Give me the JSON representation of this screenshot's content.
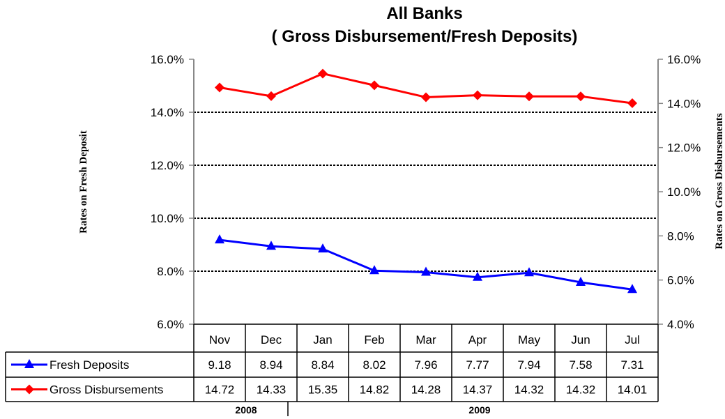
{
  "chart_data": {
    "type": "line",
    "title": "All Banks",
    "subtitle": "( Gross Disbursement/Fresh Deposits)",
    "ylabel_left": "Rates on Fresh Deposit",
    "ylabel_right": "Rates on Gross Disbursements",
    "categories": [
      "Nov",
      "Dec",
      "Jan",
      "Feb",
      "Mar",
      "Apr",
      "May",
      "Jun",
      "Jul"
    ],
    "year_labels": [
      "2008",
      "2009"
    ],
    "y_left": {
      "range": [
        6.0,
        16.0
      ],
      "ticks": [
        "6.0%",
        "8.0%",
        "10.0%",
        "12.0%",
        "14.0%",
        "16.0%"
      ]
    },
    "y_right": {
      "range": [
        4.0,
        16.0
      ],
      "ticks": [
        "4.0%",
        "6.0%",
        "8.0%",
        "10.0%",
        "12.0%",
        "14.0%",
        "16.0%"
      ]
    },
    "grid": true,
    "series": [
      {
        "name": "Fresh Deposits",
        "axis": "left",
        "color": "#0000ff",
        "marker": "triangle",
        "values": [
          9.18,
          8.94,
          8.84,
          8.02,
          7.96,
          7.77,
          7.94,
          7.58,
          7.31
        ],
        "labels": [
          "9.18",
          "8.94",
          "8.84",
          "8.02",
          "7.96",
          "7.77",
          "7.94",
          "7.58",
          "7.31"
        ]
      },
      {
        "name": "Gross Disbursements",
        "axis": "right",
        "color": "#ff0000",
        "marker": "diamond",
        "values": [
          14.72,
          14.33,
          15.35,
          14.82,
          14.28,
          14.37,
          14.32,
          14.32,
          14.01
        ],
        "labels": [
          "14.72",
          "14.33",
          "15.35",
          "14.82",
          "14.28",
          "14.37",
          "14.32",
          "14.32",
          "14.01"
        ]
      }
    ]
  }
}
